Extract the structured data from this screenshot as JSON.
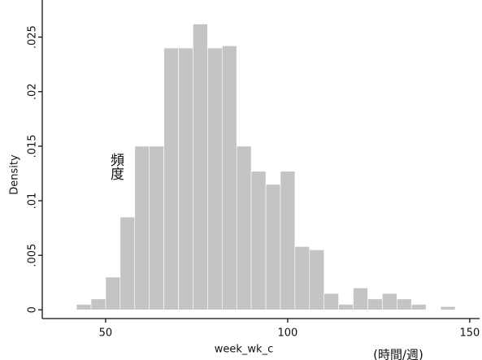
{
  "chart_data": {
    "type": "histogram",
    "xlabel": "week_wk_c",
    "ylabel": "Density",
    "annotations": [
      "頻度",
      "(時間/週)"
    ],
    "bins": [
      42,
      46,
      50,
      54,
      58,
      62,
      66,
      70,
      74,
      78,
      82,
      86,
      90,
      94,
      98,
      102,
      106,
      110,
      114,
      118,
      122,
      126,
      130,
      134,
      138,
      142,
      146
    ],
    "counts": [
      0.0005,
      0.001,
      0.003,
      0.0085,
      0.015,
      0.015,
      0.024,
      0.024,
      0.0262,
      0.024,
      0.0242,
      0.015,
      0.0127,
      0.0115,
      0.0127,
      0.0058,
      0.0055,
      0.0015,
      0.0005,
      0.002,
      0.001,
      0.0015,
      0.001,
      0.0005,
      0,
      0.0003
    ],
    "color": "#c4c4c4",
    "xlim": [
      32.6,
      152.7
    ],
    "ylim": [
      -0.0008,
      0.0284
    ],
    "xticks": [
      50,
      100,
      150
    ],
    "yticks": [
      0,
      {
        "value": 0.005,
        "label": ".005"
      },
      {
        "value": 0.01,
        "label": ".01"
      },
      {
        "value": 0.015,
        "label": ".015"
      },
      {
        "value": 0.02,
        "label": ".02"
      },
      {
        "value": 0.025,
        "label": ".025"
      }
    ]
  }
}
